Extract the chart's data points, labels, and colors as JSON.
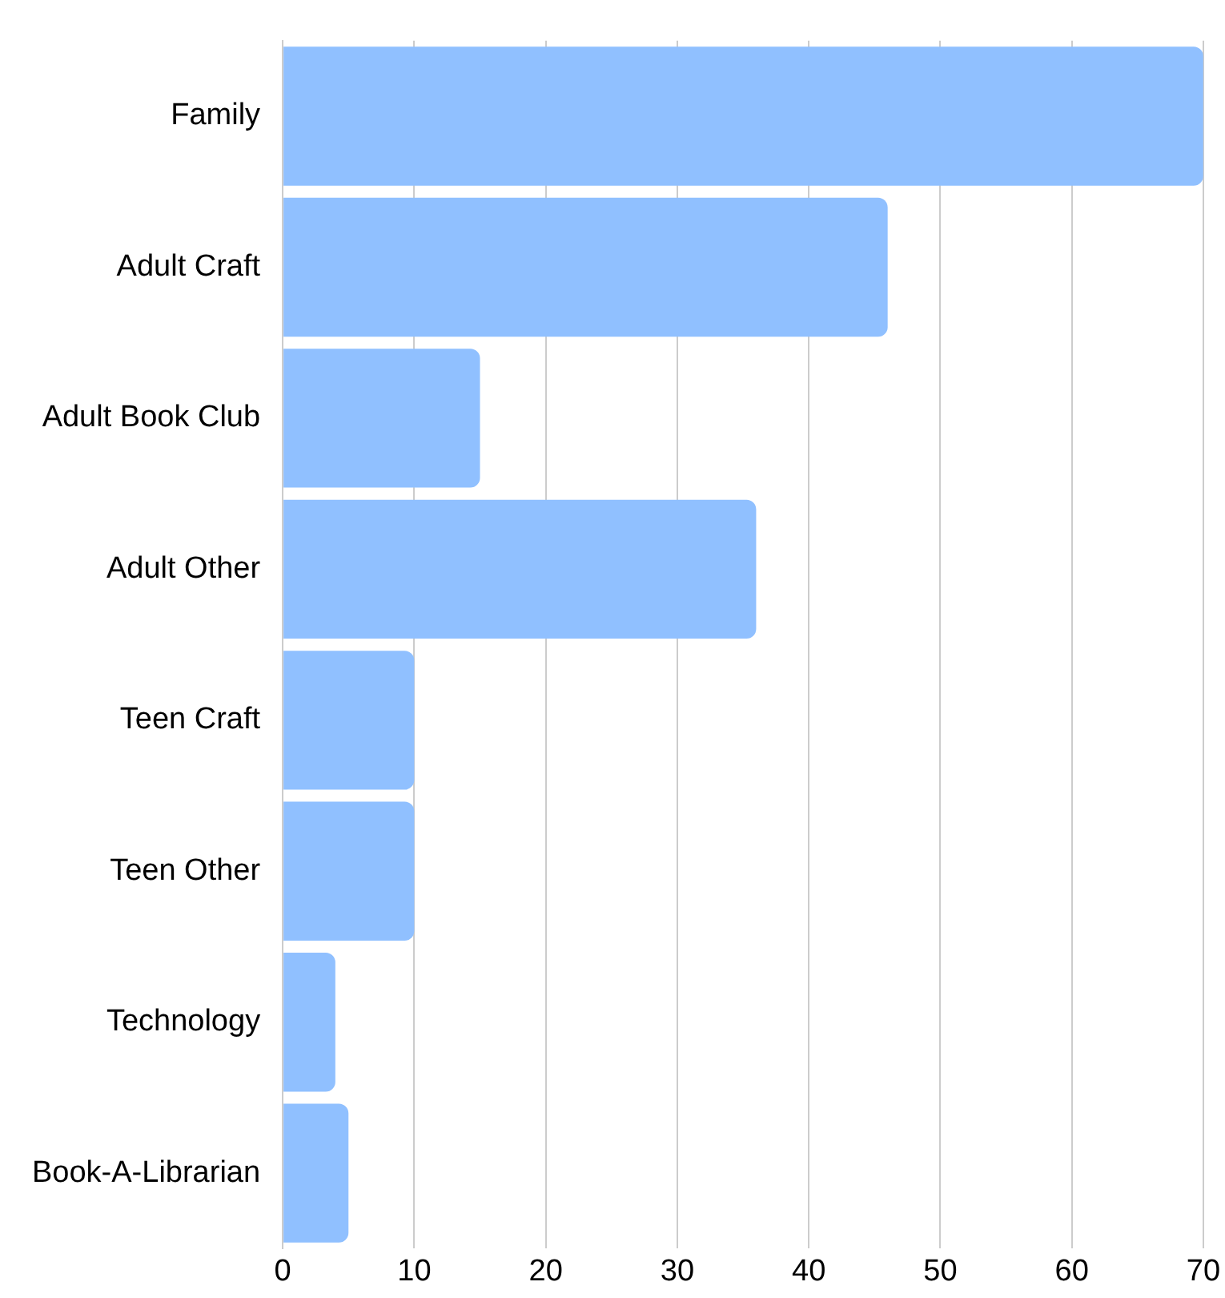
{
  "chart_data": {
    "type": "bar",
    "orientation": "horizontal",
    "categories": [
      "Family",
      "Adult Craft",
      "Adult Book Club",
      "Adult Other",
      "Teen Craft",
      "Teen Other",
      "Technology",
      "Book-A-Librarian"
    ],
    "values": [
      70,
      46,
      15,
      36,
      10,
      10,
      4,
      5
    ],
    "color": "#90c0ff",
    "xlim": [
      0,
      70
    ],
    "xticks": [
      0,
      10,
      20,
      30,
      40,
      50,
      60,
      70
    ],
    "grid": "x",
    "legend": false
  }
}
